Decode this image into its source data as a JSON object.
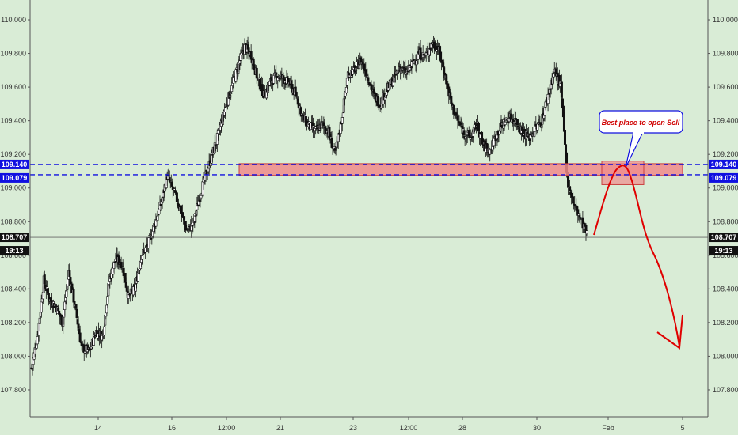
{
  "chart_data": {
    "type": "candlestick",
    "symbol_note": "",
    "ylim": [
      107.64,
      110.08
    ],
    "y_ticks": [
      "107.800",
      "108.000",
      "108.200",
      "108.400",
      "108.600",
      "108.800",
      "109.000",
      "109.200",
      "109.400",
      "109.600",
      "109.800",
      "110.000"
    ],
    "x_ticks": [
      "14",
      "16",
      "12:00",
      "21",
      "23",
      "12:00",
      "28",
      "30",
      "Feb",
      "5"
    ],
    "grid": false,
    "series": [
      {
        "label_left": "1",
        "points": [
          [
            0,
            107.93
          ],
          [
            8,
            108.15
          ],
          [
            15,
            108.45
          ],
          [
            22,
            108.34
          ],
          [
            30,
            108.3
          ],
          [
            38,
            108.2
          ],
          [
            46,
            108.5
          ],
          [
            55,
            108.26
          ],
          [
            62,
            108.05
          ],
          [
            72,
            108.03
          ],
          [
            80,
            108.15
          ],
          [
            88,
            108.12
          ],
          [
            96,
            108.45
          ],
          [
            104,
            108.58
          ],
          [
            112,
            108.55
          ],
          [
            120,
            108.35
          ],
          [
            128,
            108.4
          ],
          [
            136,
            108.6
          ],
          [
            144,
            108.66
          ],
          [
            152,
            108.78
          ],
          [
            160,
            108.9
          ],
          [
            168,
            109.07
          ],
          [
            176,
            108.98
          ],
          [
            184,
            108.88
          ],
          [
            192,
            108.75
          ],
          [
            200,
            108.78
          ],
          [
            208,
            108.95
          ],
          [
            216,
            109.08
          ],
          [
            224,
            109.2
          ],
          [
            232,
            109.33
          ],
          [
            240,
            109.48
          ],
          [
            248,
            109.6
          ],
          [
            256,
            109.73
          ],
          [
            264,
            109.84
          ],
          [
            272,
            109.79
          ],
          [
            280,
            109.65
          ],
          [
            288,
            109.55
          ],
          [
            296,
            109.63
          ],
          [
            304,
            109.67
          ],
          [
            312,
            109.65
          ],
          [
            320,
            109.62
          ],
          [
            328,
            109.55
          ],
          [
            336,
            109.42
          ],
          [
            344,
            109.37
          ],
          [
            352,
            109.34
          ],
          [
            360,
            109.38
          ],
          [
            368,
            109.33
          ],
          [
            376,
            109.2
          ],
          [
            384,
            109.4
          ],
          [
            392,
            109.68
          ],
          [
            400,
            109.7
          ],
          [
            408,
            109.76
          ],
          [
            416,
            109.67
          ],
          [
            424,
            109.55
          ],
          [
            432,
            109.5
          ],
          [
            440,
            109.58
          ],
          [
            448,
            109.64
          ],
          [
            456,
            109.72
          ],
          [
            464,
            109.68
          ],
          [
            472,
            109.74
          ],
          [
            480,
            109.8
          ],
          [
            488,
            109.78
          ],
          [
            496,
            109.86
          ],
          [
            504,
            109.83
          ],
          [
            512,
            109.68
          ],
          [
            520,
            109.5
          ],
          [
            528,
            109.4
          ],
          [
            536,
            109.33
          ],
          [
            544,
            109.3
          ],
          [
            552,
            109.38
          ],
          [
            560,
            109.25
          ],
          [
            568,
            109.22
          ],
          [
            576,
            109.32
          ],
          [
            584,
            109.38
          ],
          [
            592,
            109.42
          ],
          [
            600,
            109.4
          ],
          [
            608,
            109.34
          ],
          [
            616,
            109.3
          ],
          [
            624,
            109.35
          ],
          [
            632,
            109.4
          ],
          [
            640,
            109.55
          ],
          [
            648,
            109.7
          ],
          [
            656,
            109.6
          ],
          [
            664,
            109.05
          ],
          [
            672,
            108.9
          ],
          [
            680,
            108.82
          ],
          [
            688,
            108.72
          ]
        ]
      }
    ],
    "last_price": "108.707",
    "countdown": "19:13",
    "zone_levels": [
      "109.140",
      "109.079"
    ],
    "zone": {
      "y_low": 109.075,
      "y_high": 109.145
    },
    "annotation": "Best place to open Sell",
    "colors": {
      "background": "#d9ecd6",
      "candle": "#111111",
      "zone_fill": "#f08b8b",
      "zone_stroke": "#c94040",
      "dashed_line": "#1010e0",
      "badge_blue": "#1010e0",
      "badge_black": "#111111",
      "arrow_red": "#e00000",
      "callout_bg": "#ffffff",
      "callout_stroke": "#1010e0"
    }
  }
}
